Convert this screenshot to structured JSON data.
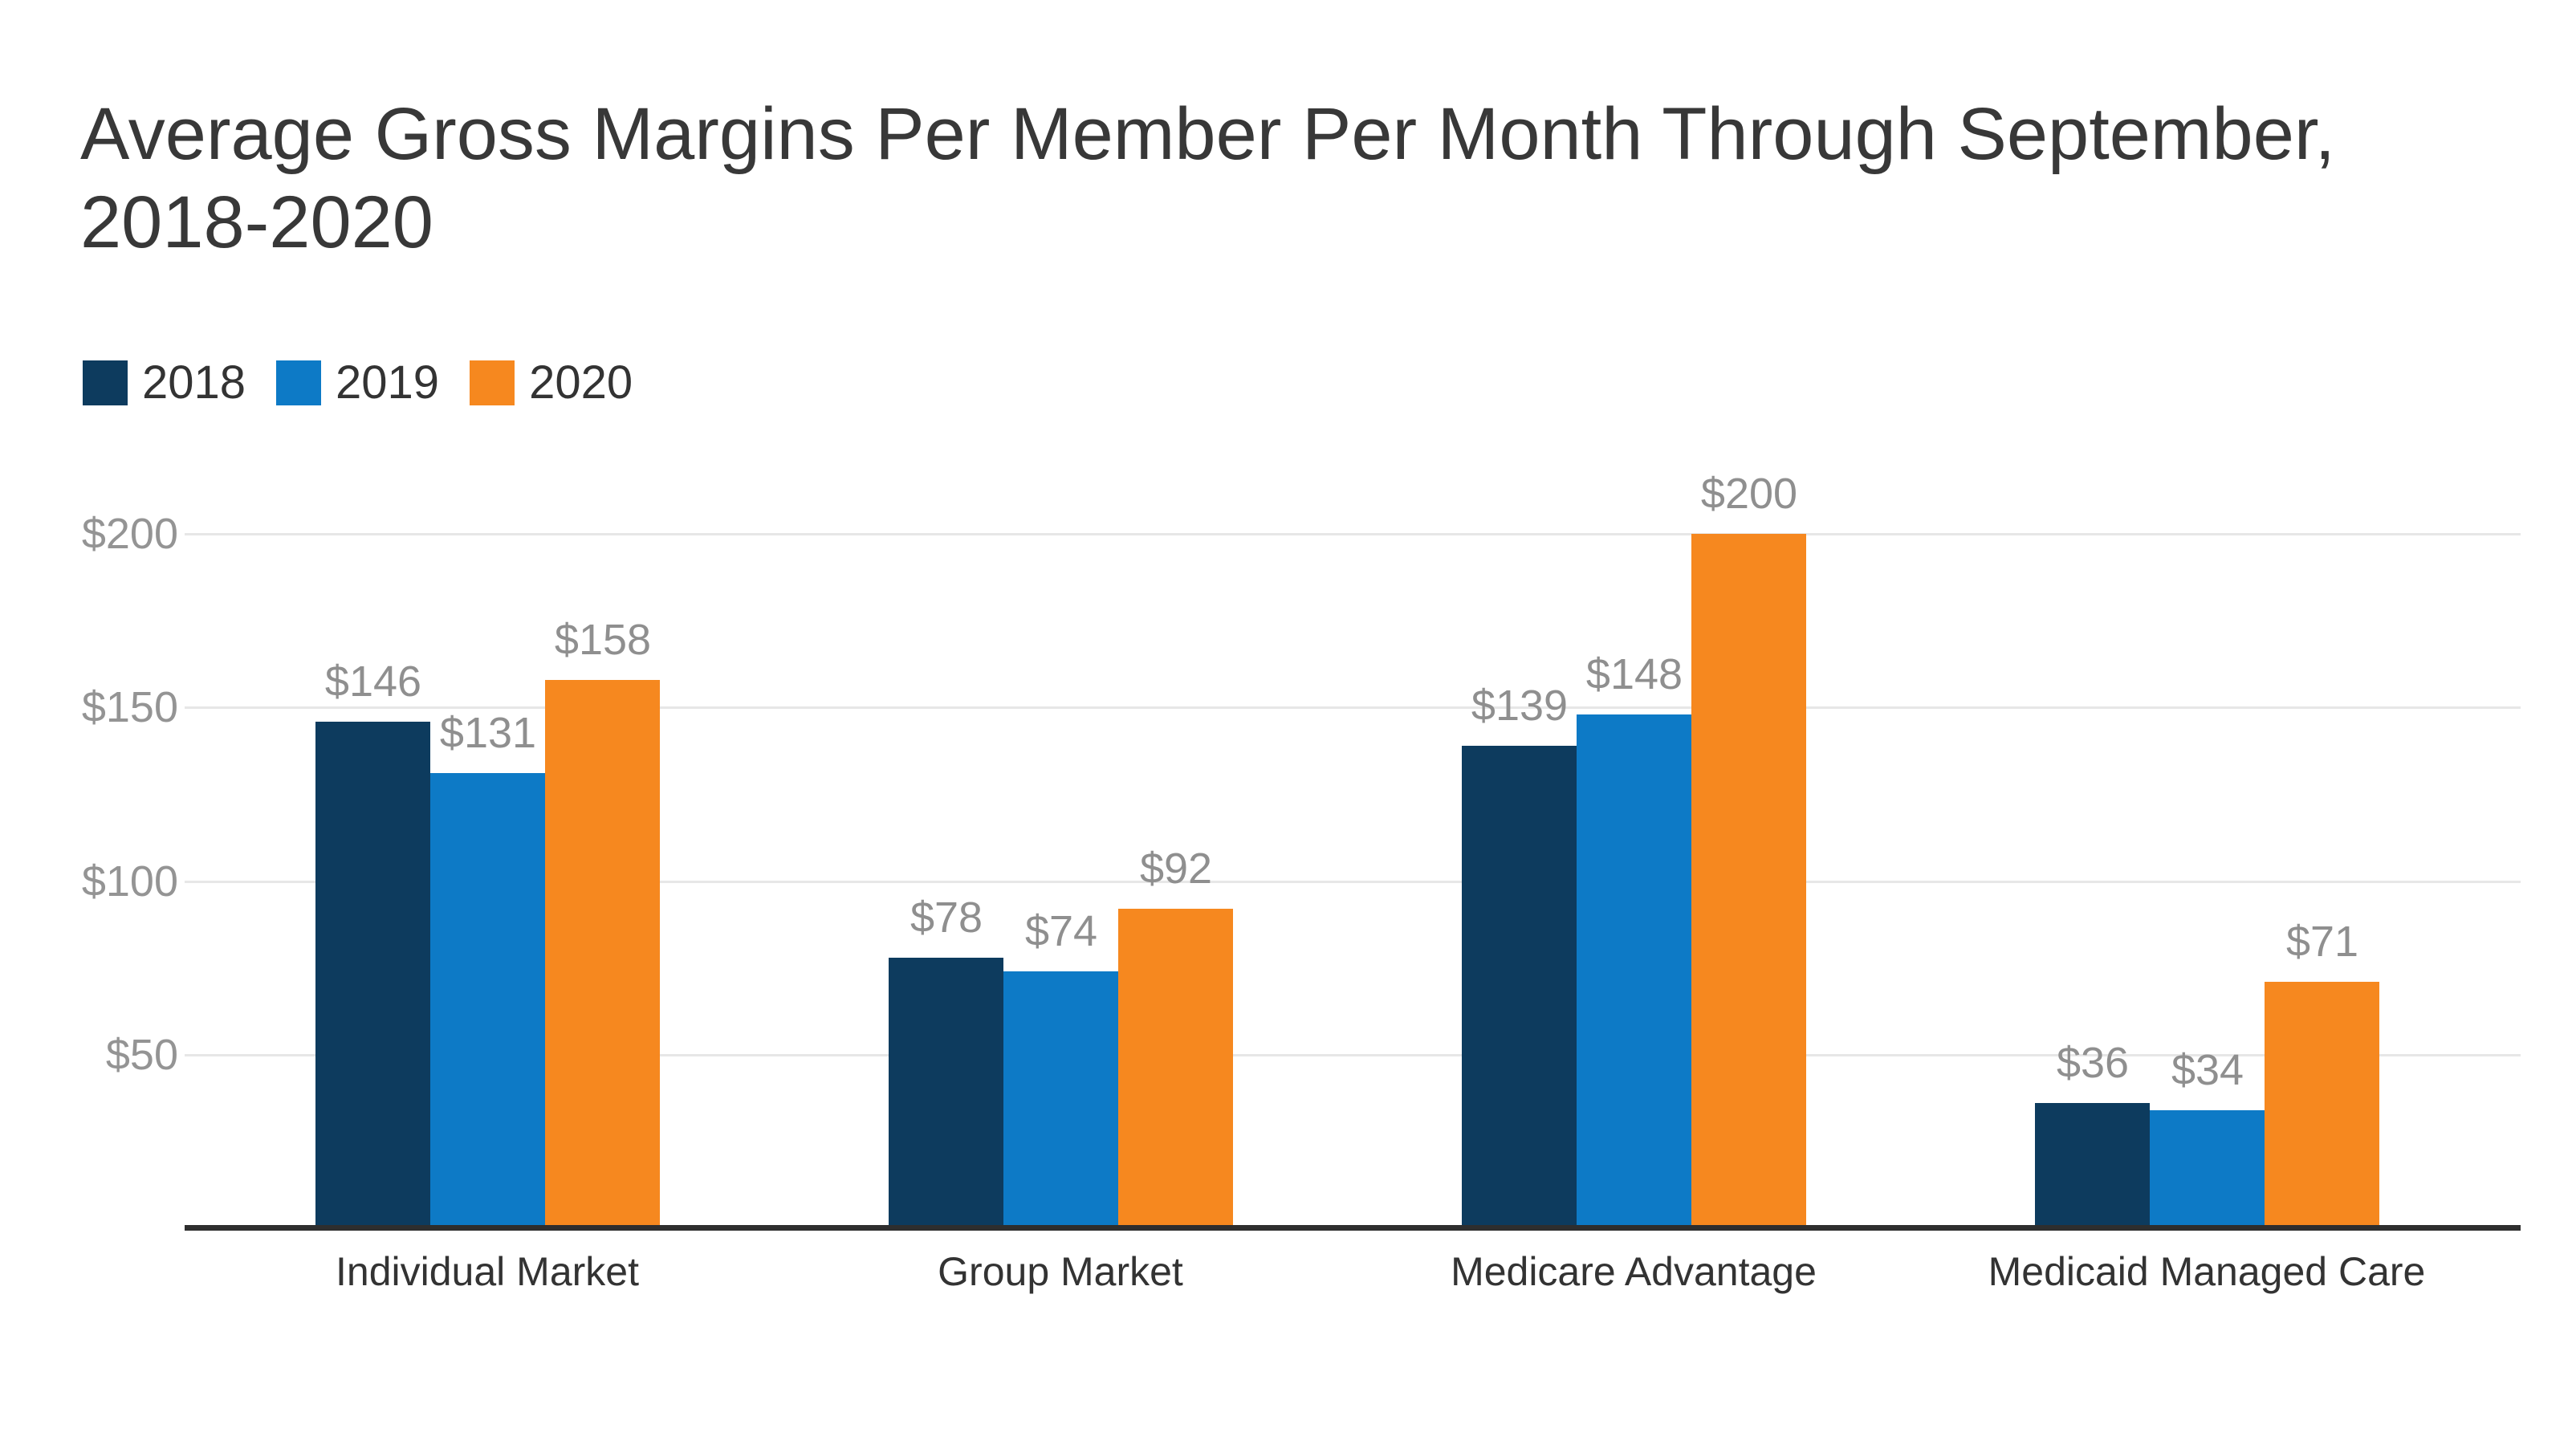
{
  "chart_data": {
    "type": "bar",
    "title": "Average Gross Margins Per Member Per Month Through September, 2018-2020",
    "categories": [
      "Individual Market",
      "Group Market",
      "Medicare Advantage",
      "Medicaid Managed Care"
    ],
    "series": [
      {
        "name": "2018",
        "color": "#0d3b5e",
        "values": [
          146,
          78,
          139,
          36
        ]
      },
      {
        "name": "2019",
        "color": "#0d7ac6",
        "values": [
          131,
          74,
          148,
          34
        ]
      },
      {
        "name": "2020",
        "color": "#f6881f",
        "values": [
          158,
          92,
          200,
          71
        ]
      }
    ],
    "value_prefix": "$",
    "data_labels": true,
    "ylim": [
      0,
      215
    ],
    "yticks": [
      50,
      100,
      150,
      200
    ],
    "ytick_labels": [
      "$50",
      "$100",
      "$150",
      "$200"
    ],
    "grid": true,
    "legend_position": "top-left",
    "colors": {
      "title_text": "#383838",
      "legend_text": "#333333",
      "grid": "#e7e7e7",
      "axis": "#2e2e2e",
      "tick_text": "#949494",
      "data_label_text": "#8f8f8f",
      "category_text": "#333333",
      "background": "#ffffff"
    }
  }
}
